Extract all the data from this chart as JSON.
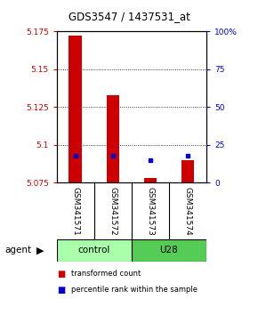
{
  "title": "GDS3547 / 1437531_at",
  "samples": [
    "GSM341571",
    "GSM341572",
    "GSM341573",
    "GSM341574"
  ],
  "bar_values": [
    5.172,
    5.133,
    5.078,
    5.09
  ],
  "bar_base": 5.075,
  "blue_markers": [
    5.093,
    5.093,
    5.09,
    5.093
  ],
  "ylim_left": [
    5.075,
    5.175
  ],
  "ylim_right": [
    0,
    100
  ],
  "yticks_left": [
    5.075,
    5.1,
    5.125,
    5.15,
    5.175
  ],
  "yticks_right": [
    0,
    25,
    50,
    75,
    100
  ],
  "ytick_labels_left": [
    "5.075",
    "5.1",
    "5.125",
    "5.15",
    "5.175"
  ],
  "ytick_labels_right": [
    "0",
    "25",
    "50",
    "75",
    "100%"
  ],
  "bar_color": "#cc0000",
  "marker_color": "#0000cc",
  "group_control_color": "#aaffaa",
  "group_u28_color": "#55cc55",
  "legend_items": [
    {
      "color": "#cc0000",
      "label": "transformed count"
    },
    {
      "color": "#0000cc",
      "label": "percentile rank within the sample"
    }
  ],
  "grid_yticks": [
    5.1,
    5.125,
    5.15
  ],
  "background_color": "#ffffff",
  "bar_width": 0.35
}
